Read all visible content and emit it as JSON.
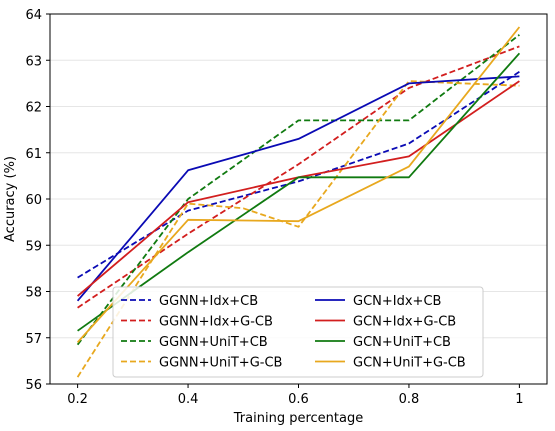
{
  "chart_data": {
    "type": "line",
    "title": "",
    "xlabel": "Training percentage",
    "ylabel": "Accuracy (%)",
    "x": [
      0.2,
      0.4,
      0.6,
      0.8,
      1.0
    ],
    "xticks": [
      "0.2",
      "0.4",
      "0.6",
      "0.8",
      "1"
    ],
    "xlim": [
      0.15,
      1.05
    ],
    "ylim": [
      56,
      64
    ],
    "yticks": [
      "56",
      "57",
      "58",
      "59",
      "60",
      "61",
      "62",
      "63",
      "64"
    ],
    "grid": "horizontal",
    "legend": {
      "position": "lower-center",
      "columns": 2
    },
    "series": [
      {
        "name": "GGNN+Idx+CB",
        "color": "#0a0ab4",
        "dash": "dashed",
        "x": [
          0.2,
          0.4,
          0.6,
          0.8,
          1.0
        ],
        "values": [
          58.3,
          59.75,
          60.38,
          61.2,
          62.75
        ]
      },
      {
        "name": "GGNN+Idx+G-CB",
        "color": "#d21e1e",
        "dash": "dashed",
        "x": [
          0.2,
          0.4,
          0.6,
          0.8,
          1.0
        ],
        "values": [
          57.65,
          59.25,
          60.75,
          62.4,
          63.3
        ]
      },
      {
        "name": "GGNN+UniT+CB",
        "color": "#107a10",
        "dash": "dashed",
        "x": [
          0.2,
          0.4,
          0.6,
          0.8,
          1.0
        ],
        "values": [
          56.85,
          60.0,
          61.7,
          61.7,
          63.55
        ]
      },
      {
        "name": "GGNN+UniT+G-CB",
        "color": "#e8a81e",
        "dash": "dashed",
        "x": [
          0.2,
          0.4,
          0.5,
          0.6,
          0.8,
          1.0
        ],
        "values": [
          56.15,
          59.9,
          59.8,
          59.4,
          62.55,
          62.45
        ]
      },
      {
        "name": "GCN+Idx+CB",
        "color": "#0a0ab4",
        "dash": "solid",
        "x": [
          0.2,
          0.4,
          0.6,
          0.8,
          1.0
        ],
        "values": [
          57.8,
          60.62,
          61.3,
          62.5,
          62.65
        ]
      },
      {
        "name": "GCN+Idx+G-CB",
        "color": "#d21e1e",
        "dash": "solid",
        "x": [
          0.2,
          0.4,
          0.6,
          0.8,
          1.0
        ],
        "values": [
          57.9,
          59.93,
          60.47,
          60.92,
          62.55
        ]
      },
      {
        "name": "GCN+UniT+CB",
        "color": "#107a10",
        "dash": "solid",
        "x": [
          0.2,
          0.4,
          0.6,
          0.8,
          1.0
        ],
        "values": [
          57.15,
          58.85,
          60.47,
          60.47,
          63.15
        ]
      },
      {
        "name": "GCN+UniT+G-CB",
        "color": "#e8a81e",
        "dash": "solid",
        "x": [
          0.2,
          0.4,
          0.6,
          0.8,
          1.0
        ],
        "values": [
          56.9,
          59.55,
          59.52,
          60.7,
          63.72
        ]
      }
    ]
  }
}
